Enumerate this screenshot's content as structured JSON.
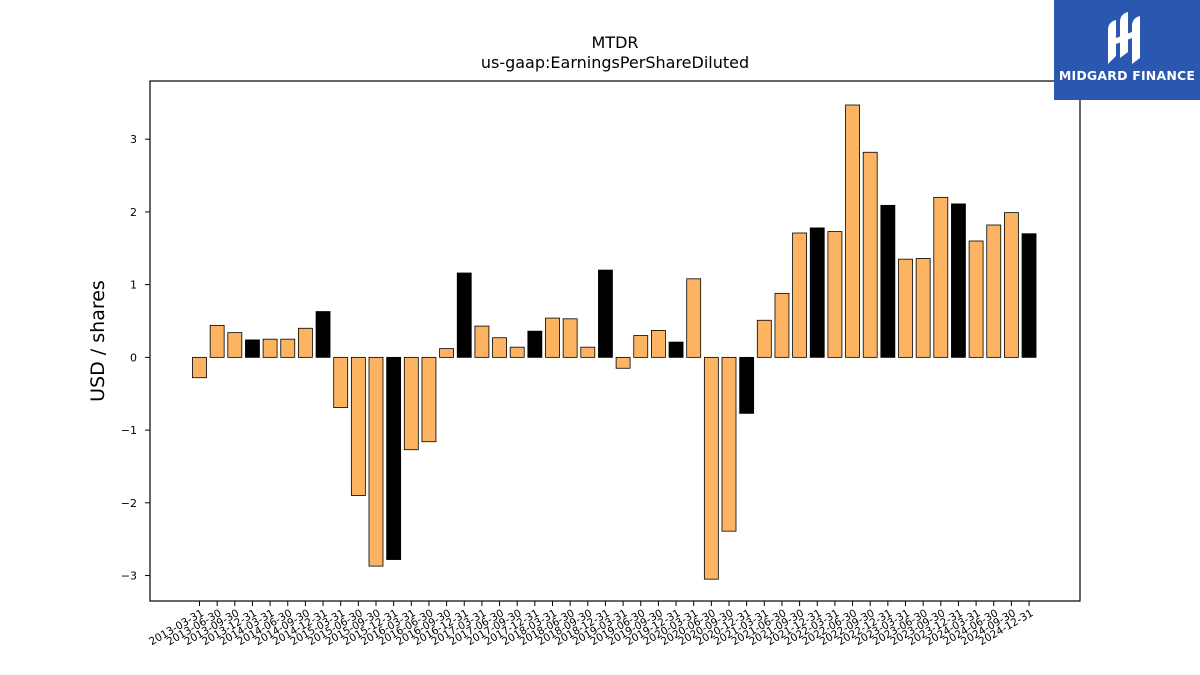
{
  "logo": {
    "text": "MIDGARD FINANCE",
    "icon": "midgard-m-logo-icon",
    "background": "#2a57b0"
  },
  "chart_data": {
    "type": "bar",
    "title": "MTDR",
    "subtitle": "us-gaap:EarningsPerShareDiluted",
    "xlabel": "",
    "ylabel": "USD / shares",
    "ylim": [
      -3.35,
      3.8
    ],
    "yticks": [
      -3,
      -2,
      -1,
      0,
      1,
      2,
      3
    ],
    "ytick_labels": [
      "−3",
      "−2",
      "−1",
      "0",
      "1",
      "2",
      "3"
    ],
    "grid": false,
    "colors": {
      "quarter": "#fdb462",
      "year_end": "#000000",
      "edge": "#000000"
    },
    "categories": [
      "2013-03-31",
      "2013-06-30",
      "2013-09-30",
      "2013-12-31",
      "2014-03-31",
      "2014-06-30",
      "2014-09-30",
      "2014-12-31",
      "2015-03-31",
      "2015-06-30",
      "2015-09-30",
      "2015-12-31",
      "2016-03-31",
      "2016-06-30",
      "2016-09-30",
      "2016-12-31",
      "2017-03-31",
      "2017-06-30",
      "2017-09-30",
      "2017-12-31",
      "2018-03-31",
      "2018-06-30",
      "2018-09-30",
      "2018-12-31",
      "2019-03-31",
      "2019-06-30",
      "2019-09-30",
      "2019-12-31",
      "2020-03-31",
      "2020-06-30",
      "2020-09-30",
      "2020-12-31",
      "2021-03-31",
      "2021-06-30",
      "2021-09-30",
      "2021-12-31",
      "2022-03-31",
      "2022-06-30",
      "2022-09-30",
      "2022-12-31",
      "2023-03-31",
      "2023-06-30",
      "2023-09-30",
      "2023-12-31",
      "2024-03-31",
      "2024-06-30",
      "2024-09-30",
      "2024-12-31"
    ],
    "values": [
      -0.28,
      0.44,
      0.34,
      0.24,
      0.25,
      0.25,
      0.4,
      0.63,
      -0.69,
      -1.9,
      -2.87,
      -2.78,
      -1.27,
      -1.16,
      0.12,
      1.16,
      0.43,
      0.27,
      0.14,
      0.36,
      0.54,
      0.53,
      0.14,
      1.2,
      -0.15,
      0.3,
      0.37,
      0.21,
      1.08,
      -3.05,
      -2.39,
      -0.77,
      0.51,
      0.88,
      1.71,
      1.78,
      1.73,
      3.47,
      2.82,
      2.09,
      1.35,
      1.36,
      2.2,
      2.11,
      1.6,
      1.82,
      1.99,
      1.7
    ],
    "year_end_flags": [
      false,
      false,
      false,
      true,
      false,
      false,
      false,
      true,
      false,
      false,
      false,
      true,
      false,
      false,
      false,
      true,
      false,
      false,
      false,
      true,
      false,
      false,
      false,
      true,
      false,
      false,
      false,
      true,
      false,
      false,
      false,
      true,
      false,
      false,
      false,
      true,
      false,
      false,
      false,
      true,
      false,
      false,
      false,
      true,
      false,
      false,
      false,
      true
    ]
  }
}
